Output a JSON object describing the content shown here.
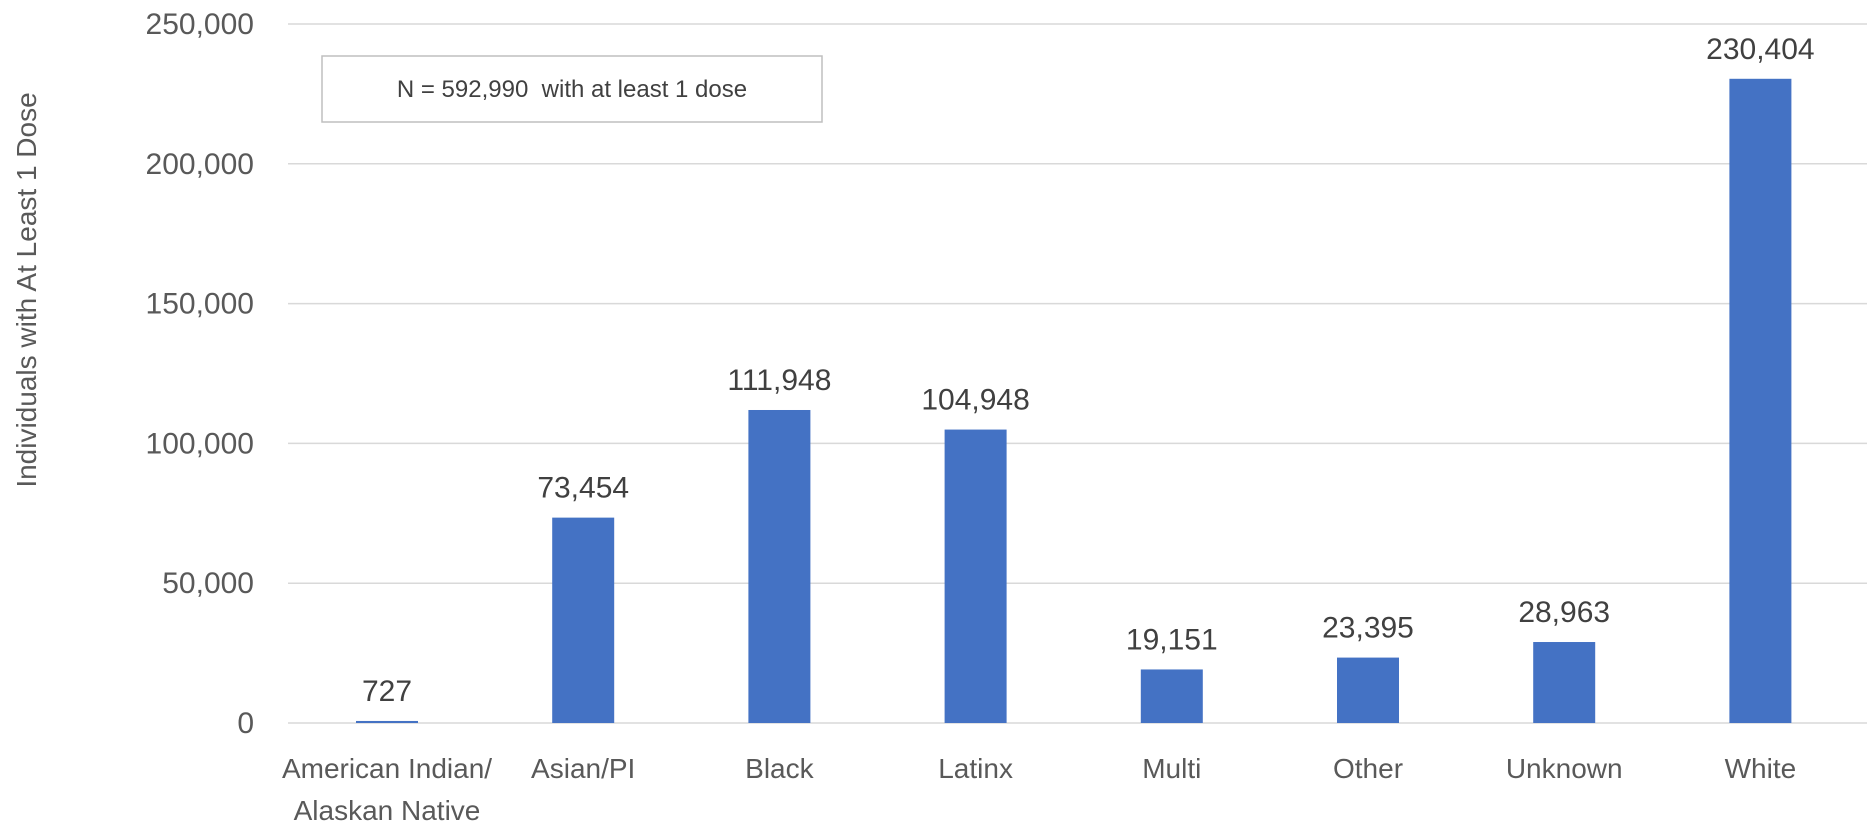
{
  "chart_data": {
    "type": "bar",
    "categories": [
      [
        "American Indian/",
        "Alaskan Native"
      ],
      [
        "Asian/PI"
      ],
      [
        "Black"
      ],
      [
        "Latinx"
      ],
      [
        "Multi"
      ],
      [
        "Other"
      ],
      [
        "Unknown"
      ],
      [
        "White"
      ]
    ],
    "values": [
      727,
      73454,
      111948,
      104948,
      19151,
      23395,
      28963,
      230404
    ],
    "data_labels": [
      "727",
      "73,454",
      "111,948",
      "104,948",
      "19,151",
      "23,395",
      "28,963",
      "230,404"
    ],
    "ylabel": "Individuals with At Least 1 Dose",
    "ylim": [
      0,
      250000
    ],
    "yticks": [
      0,
      50000,
      100000,
      150000,
      200000,
      250000
    ],
    "ytick_labels": [
      "0",
      "50,000",
      "100,000",
      "150,000",
      "200,000",
      "250,000"
    ],
    "annotation": "N = 592,990  with at least 1 dose",
    "grid": true,
    "bar_color": "#4472C4",
    "grid_color": "#D9D9D9"
  }
}
